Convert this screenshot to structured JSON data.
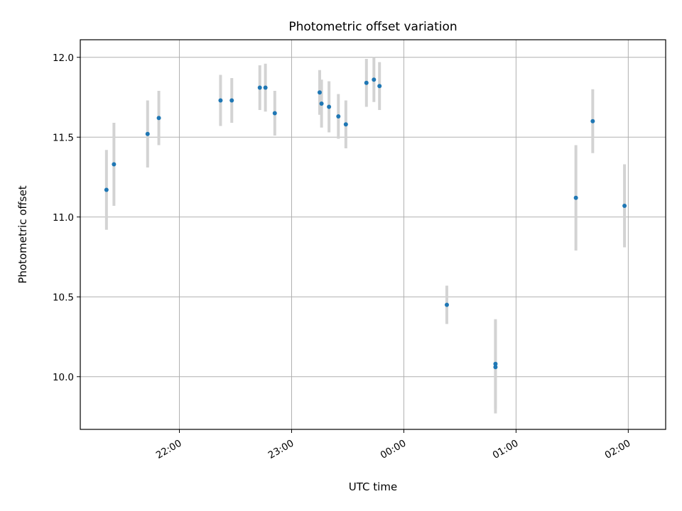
{
  "chart_data": {
    "type": "scatter",
    "title": "Photometric offset variation",
    "xlabel": "UTC time",
    "ylabel": "Photometric offset",
    "x_axis": {
      "kind": "time",
      "date": "2000-01-01",
      "range": [
        "21:07",
        "02:20"
      ],
      "ticks": [
        "22:00",
        "23:00",
        "00:00",
        "01:00",
        "02:00"
      ]
    },
    "y_axis": {
      "range": [
        9.67,
        12.11
      ],
      "ticks": [
        "10.0",
        "10.5",
        "11.0",
        "11.5",
        "12.0"
      ]
    },
    "grid": true,
    "colors": {
      "marker": "#1f77b4",
      "errorbar": "#d3d3d3",
      "grid": "#b0b0b0"
    },
    "points": [
      {
        "t": "21:21",
        "y": 11.17,
        "err": 0.25
      },
      {
        "t": "21:25",
        "y": 11.33,
        "err": 0.26
      },
      {
        "t": "21:43",
        "y": 11.52,
        "err": 0.21
      },
      {
        "t": "21:49",
        "y": 11.62,
        "err": 0.17
      },
      {
        "t": "22:22",
        "y": 11.73,
        "err": 0.16
      },
      {
        "t": "22:28",
        "y": 11.73,
        "err": 0.14
      },
      {
        "t": "22:43",
        "y": 11.81,
        "err": 0.14
      },
      {
        "t": "22:46",
        "y": 11.81,
        "err": 0.15
      },
      {
        "t": "22:51",
        "y": 11.65,
        "err": 0.14
      },
      {
        "t": "23:15",
        "y": 11.78,
        "err": 0.14
      },
      {
        "t": "23:16",
        "y": 11.71,
        "err": 0.15
      },
      {
        "t": "23:20",
        "y": 11.69,
        "err": 0.16
      },
      {
        "t": "23:25",
        "y": 11.63,
        "err": 0.14
      },
      {
        "t": "23:29",
        "y": 11.58,
        "err": 0.15
      },
      {
        "t": "23:40",
        "y": 11.84,
        "err": 0.15
      },
      {
        "t": "23:44",
        "y": 11.86,
        "err": 0.14
      },
      {
        "t": "23:47",
        "y": 11.82,
        "err": 0.15
      },
      {
        "t": "00:23",
        "y": 10.45,
        "err": 0.12
      },
      {
        "t": "00:49",
        "y": 10.08,
        "err": 0.28
      },
      {
        "t": "00:49",
        "y": 10.06,
        "err": 0.29
      },
      {
        "t": "01:32",
        "y": 11.12,
        "err": 0.33
      },
      {
        "t": "01:41",
        "y": 11.6,
        "err": 0.2
      },
      {
        "t": "01:58",
        "y": 11.07,
        "err": 0.26
      }
    ]
  }
}
